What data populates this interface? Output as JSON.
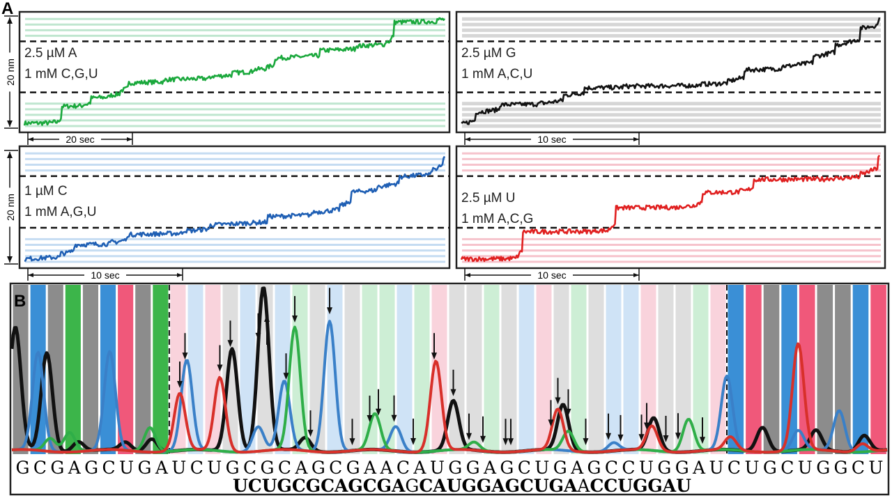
{
  "panel_labels": {
    "a": "A",
    "b": "B"
  },
  "chart_data": [
    {
      "type": "line",
      "panel": "A",
      "y_scale_label": "20 nm",
      "subplots": [
        {
          "conditions": [
            "2.5 µM A",
            "1 mM C,G,U"
          ],
          "color": "#1aa83c",
          "stripe_color": "#bfe6cf",
          "time_scale_label": "20 sec",
          "time_span_sec": 82,
          "trace_nm": [
            [
              0,
              1
            ],
            [
              0.08,
              1.2
            ],
            [
              0.09,
              4
            ],
            [
              0.15,
              4.4
            ],
            [
              0.16,
              5.5
            ],
            [
              0.21,
              6
            ],
            [
              0.23,
              6.8
            ],
            [
              0.25,
              8.2
            ],
            [
              0.35,
              8.8
            ],
            [
              0.46,
              9.4
            ],
            [
              0.5,
              10
            ],
            [
              0.55,
              10.6
            ],
            [
              0.58,
              11
            ],
            [
              0.6,
              12.6
            ],
            [
              0.72,
              14
            ],
            [
              0.8,
              14.8
            ],
            [
              0.87,
              15.6
            ],
            [
              0.88,
              19
            ],
            [
              1,
              19.5
            ]
          ]
        },
        {
          "conditions": [
            "2.5 µM G",
            "1 mM A,C,U"
          ],
          "color": "#111111",
          "stripe_color": "#d6d6d6",
          "time_scale_label": "10 sec",
          "time_span_sec": 25,
          "trace_nm": [
            [
              0,
              0.8
            ],
            [
              0.04,
              3
            ],
            [
              0.1,
              4.3
            ],
            [
              0.2,
              4.6
            ],
            [
              0.25,
              6
            ],
            [
              0.3,
              7.3
            ],
            [
              0.4,
              7.6
            ],
            [
              0.6,
              8
            ],
            [
              0.64,
              8.5
            ],
            [
              0.68,
              10.5
            ],
            [
              0.78,
              11.2
            ],
            [
              0.85,
              13
            ],
            [
              0.9,
              15
            ],
            [
              0.96,
              18
            ],
            [
              1,
              19.5
            ]
          ]
        },
        {
          "conditions": [
            "1 µM C",
            "1 mM A,G,U"
          ],
          "color": "#1f5fb4",
          "stripe_color": "#c5dcf2",
          "time_scale_label": "10 sec",
          "time_span_sec": 28,
          "trace_nm": [
            [
              0,
              1
            ],
            [
              0.1,
              2
            ],
            [
              0.12,
              3.5
            ],
            [
              0.22,
              4
            ],
            [
              0.25,
              5.3
            ],
            [
              0.4,
              6
            ],
            [
              0.45,
              7
            ],
            [
              0.6,
              8.5
            ],
            [
              0.7,
              9.3
            ],
            [
              0.76,
              10.5
            ],
            [
              0.78,
              12.8
            ],
            [
              0.85,
              13.8
            ],
            [
              0.9,
              15.5
            ],
            [
              0.98,
              16.8
            ],
            [
              1,
              19
            ]
          ]
        },
        {
          "conditions": [
            "2.5 µM U",
            "1 mM A,C,G"
          ],
          "color": "#e02020",
          "stripe_color": "#f6c3cc",
          "time_scale_label": "10 sec",
          "time_span_sec": 25,
          "trace_nm": [
            [
              0,
              1
            ],
            [
              0.13,
              1.1
            ],
            [
              0.15,
              5.8
            ],
            [
              0.35,
              6
            ],
            [
              0.37,
              10
            ],
            [
              0.55,
              10.3
            ],
            [
              0.58,
              12.7
            ],
            [
              0.68,
              13
            ],
            [
              0.7,
              15
            ],
            [
              0.9,
              15.2
            ],
            [
              0.96,
              16
            ],
            [
              1,
              19
            ]
          ]
        }
      ]
    },
    {
      "type": "line",
      "panel": "B",
      "template_sequence": "GCGAGCUGAUCUGCGCAGCGAACAUGGAGCUGAGCCUGGAUCUGCUGGCU",
      "read_sequence": [
        {
          "text": "UCUGCGCAGCGA",
          "bold": true
        },
        {
          "text": "G",
          "bold": false
        },
        {
          "text": "CAUGGAGCUGA",
          "bold": true
        },
        {
          "text": "A",
          "bold": false
        },
        {
          "text": "CCUGGAU",
          "bold": true
        }
      ],
      "base_colors": {
        "A": "#3cb54a",
        "C": "#3a8fd6",
        "G": "#8c8c8c",
        "U": "#f0587a"
      },
      "series": [
        {
          "base": "G",
          "color": "#111111",
          "peaks": [
            [
              0.2,
              0.75
            ],
            [
              2,
              0.6
            ],
            [
              12.6,
              0.63
            ],
            [
              14.4,
              1.0
            ],
            [
              16.8,
              0.08
            ],
            [
              25.3,
              0.3
            ],
            [
              31.6,
              0.28
            ],
            [
              36.8,
              0.2
            ],
            [
              43,
              0.15
            ],
            [
              46,
              0.12
            ],
            [
              48.7,
              0.1
            ],
            [
              6.5,
              0.05
            ],
            [
              8,
              0.08
            ],
            [
              3.8,
              0.06
            ]
          ]
        },
        {
          "base": "C",
          "color": "#3a80c8",
          "peaks": [
            [
              1.5,
              0.6
            ],
            [
              5.6,
              0.6
            ],
            [
              10,
              0.55
            ],
            [
              14.1,
              0.15
            ],
            [
              15.6,
              0.42
            ],
            [
              18.2,
              0.8
            ],
            [
              22,
              0.15
            ],
            [
              34.5,
              0.05
            ],
            [
              41,
              0.45
            ],
            [
              45,
              0.12
            ],
            [
              47.3,
              0.25
            ]
          ]
        },
        {
          "base": "A",
          "color": "#2fae48",
          "peaks": [
            [
              2.2,
              0.08
            ],
            [
              3.3,
              0.12
            ],
            [
              7.9,
              0.15
            ],
            [
              16.2,
              0.75
            ],
            [
              20.8,
              0.22
            ],
            [
              31.9,
              0.12
            ],
            [
              38.8,
              0.2
            ],
            [
              26.5,
              0.05
            ]
          ]
        },
        {
          "base": "U",
          "color": "#d8302a",
          "peaks": [
            [
              9.6,
              0.35
            ],
            [
              11.9,
              0.45
            ],
            [
              24.3,
              0.55
            ],
            [
              31.3,
              0.25
            ],
            [
              36.7,
              0.15
            ],
            [
              41.2,
              0.08
            ],
            [
              45,
              0.65
            ],
            [
              48.6,
              0.05
            ]
          ]
        }
      ],
      "arrow_positions": [
        9.9,
        9.6,
        11.9,
        12.5,
        14.1,
        15.7,
        16.2,
        18.2,
        17.1,
        19.5,
        20.5,
        21.0,
        21.9,
        23.0,
        24.2,
        25.3,
        26.2,
        27.0,
        28.3,
        28.6,
        30.9,
        31.3,
        31.9,
        32.9,
        34.2,
        34.9,
        36.1,
        36.4,
        37.5,
        38.2,
        39.6
      ],
      "arrow_up_positions": [
        14.6
      ],
      "dashed_boundaries": [
        9,
        40
      ]
    }
  ]
}
